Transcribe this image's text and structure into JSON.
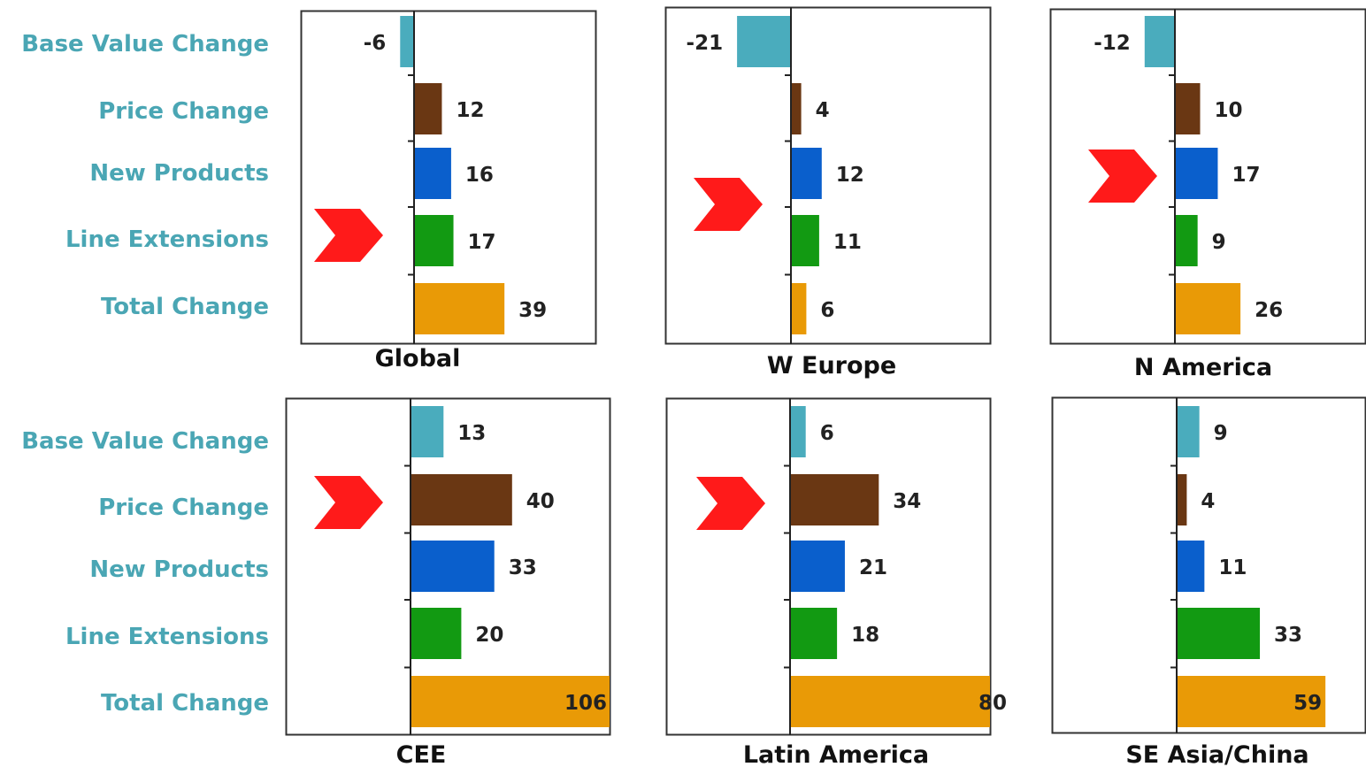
{
  "chart_data": {
    "type": "bar",
    "orientation": "horizontal",
    "categories": [
      "Base Value Change",
      "Price Change",
      "New Products",
      "Line Extensions",
      "Total Change"
    ],
    "category_colors": [
      "#4aacbd",
      "#6a3713",
      "#0a5fcc",
      "#129a12",
      "#e99a06"
    ],
    "highlight_color": "#ff1a1a",
    "panels": [
      {
        "title": "Global",
        "values": [
          -6,
          12,
          16,
          17,
          39
        ],
        "value_labels": [
          "-6",
          "12",
          "16",
          "17",
          "39"
        ],
        "highlight": 3
      },
      {
        "title": "W Europe",
        "values": [
          -21,
          4,
          12,
          11,
          6
        ],
        "value_labels": [
          "-21",
          "4",
          "12",
          "11",
          "6"
        ],
        "highlight": 2
      },
      {
        "title": "N America",
        "values": [
          -12,
          10,
          17,
          9,
          26
        ],
        "value_labels": [
          "-12",
          "10",
          "17",
          "9",
          "26"
        ],
        "highlight": 2
      },
      {
        "title": "CEE",
        "values": [
          13,
          40,
          33,
          20,
          106
        ],
        "value_labels": [
          "13",
          "40",
          "33",
          "20",
          "106"
        ],
        "highlight": 1
      },
      {
        "title": "Latin America",
        "values": [
          6,
          34,
          21,
          18,
          80
        ],
        "value_labels": [
          "6",
          "34",
          "21",
          "18",
          "80"
        ],
        "highlight": 1
      },
      {
        "title": "SE Asia/China",
        "values": [
          9,
          4,
          11,
          33,
          59
        ],
        "value_labels": [
          "9",
          "4",
          "11",
          "33",
          "59"
        ],
        "highlight": 3
      }
    ]
  }
}
